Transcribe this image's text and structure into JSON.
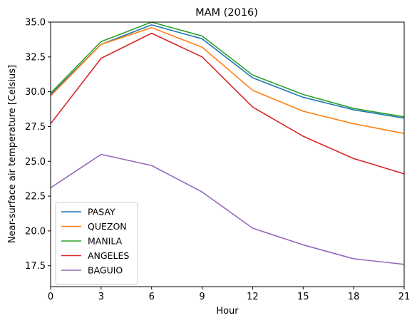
{
  "chart_data": {
    "type": "line",
    "title": "MAM (2016)",
    "xlabel": "Hour",
    "ylabel": "Near-surface air temperature [Celsius]",
    "x": [
      0,
      3,
      6,
      9,
      12,
      15,
      18,
      21
    ],
    "xticks": [
      "0",
      "3",
      "6",
      "9",
      "12",
      "15",
      "18",
      "21"
    ],
    "yticks": [
      "17.5",
      "20.0",
      "22.5",
      "25.0",
      "27.5",
      "30.0",
      "32.5",
      "35.0"
    ],
    "xlim": [
      0,
      21
    ],
    "ylim": [
      16.0,
      35.0
    ],
    "grid": false,
    "legend_position": "lower-left",
    "series": [
      {
        "name": "PASAY",
        "color": "#1f77b4",
        "values": [
          29.8,
          33.4,
          34.8,
          33.8,
          31.0,
          29.6,
          28.7,
          28.1
        ]
      },
      {
        "name": "QUEZON",
        "color": "#ff7f0e",
        "values": [
          29.7,
          33.4,
          34.6,
          33.2,
          30.1,
          28.6,
          27.7,
          27.0
        ]
      },
      {
        "name": "MANILA",
        "color": "#2ca02c",
        "values": [
          29.9,
          33.6,
          35.0,
          34.0,
          31.2,
          29.8,
          28.8,
          28.2
        ]
      },
      {
        "name": "ANGELES",
        "color": "#d62728",
        "values": [
          27.7,
          32.4,
          34.2,
          32.5,
          28.9,
          26.8,
          25.2,
          24.1
        ]
      },
      {
        "name": "BAGUIO",
        "color": "#9467bd",
        "values": [
          23.1,
          25.5,
          24.7,
          22.8,
          20.2,
          19.0,
          18.0,
          17.6
        ]
      }
    ]
  }
}
